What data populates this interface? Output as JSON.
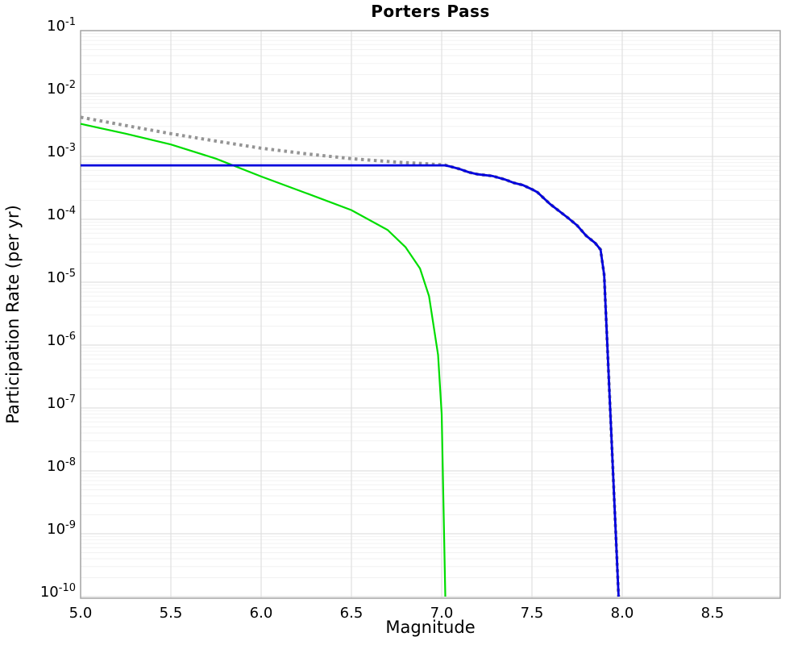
{
  "title": "Porters Pass",
  "chart_data": {
    "type": "line",
    "title": "Porters Pass",
    "xlabel": "Magnitude",
    "ylabel": "Participation Rate (per yr)",
    "x_axis": {
      "min": 5.0,
      "max": 8.875,
      "ticks": [
        5.0,
        5.5,
        6.0,
        6.5,
        7.0,
        7.5,
        8.0,
        8.5
      ]
    },
    "y_axis": {
      "scale": "log",
      "min_exp": -10,
      "max_exp": -1,
      "tick_exponents": [
        -1,
        -2,
        -3,
        -4,
        -5,
        -6,
        -7,
        -8,
        -9,
        -10
      ],
      "tick_base": "10"
    },
    "grid": {
      "major": true,
      "minor_log": true,
      "major_color": "#e0e0e0",
      "minor_color": "#f2f2f2"
    },
    "frame_color": "#a6a6a6",
    "plot_bg": "#ffffff",
    "legend": "none",
    "series": [
      {
        "name": "gray-dotted",
        "color": "#949494",
        "style": "dotted",
        "width": 4,
        "points": [
          [
            5.0,
            0.0042
          ],
          [
            5.25,
            0.0031
          ],
          [
            5.5,
            0.0023
          ],
          [
            5.75,
            0.00175
          ],
          [
            6.0,
            0.00135
          ],
          [
            6.25,
            0.0011
          ],
          [
            6.5,
            0.00092
          ],
          [
            6.75,
            0.00081
          ],
          [
            6.9,
            0.00077
          ],
          [
            7.02,
            0.00073
          ],
          [
            7.05,
            0.00069
          ],
          [
            7.1,
            0.00063
          ],
          [
            7.15,
            0.00056
          ],
          [
            7.2,
            0.00052
          ],
          [
            7.28,
            0.00049
          ],
          [
            7.35,
            0.00043
          ],
          [
            7.4,
            0.00038
          ],
          [
            7.45,
            0.00035
          ],
          [
            7.5,
            0.0003
          ],
          [
            7.53,
            0.00027
          ],
          [
            7.6,
            0.000175
          ],
          [
            7.7,
            0.000105
          ],
          [
            7.75,
            8e-05
          ],
          [
            7.8,
            5.5e-05
          ],
          [
            7.85,
            4.2e-05
          ],
          [
            7.88,
            3.3e-05
          ],
          [
            7.9,
            1.3e-05
          ],
          [
            7.98,
            1e-10
          ]
        ]
      },
      {
        "name": "green-solid",
        "color": "#00dd00",
        "style": "solid",
        "width": 2.2,
        "points": [
          [
            5.0,
            0.0033
          ],
          [
            5.25,
            0.0023
          ],
          [
            5.5,
            0.00155
          ],
          [
            5.75,
            0.00092
          ],
          [
            6.0,
            0.00048
          ],
          [
            6.25,
            0.00026
          ],
          [
            6.5,
            0.00014
          ],
          [
            6.7,
            6.8e-05
          ],
          [
            6.8,
            3.6e-05
          ],
          [
            6.88,
            1.65e-05
          ],
          [
            6.93,
            6e-06
          ],
          [
            6.98,
            7e-07
          ],
          [
            7.0,
            8e-08
          ],
          [
            7.02,
            1e-10
          ]
        ]
      },
      {
        "name": "blue-solid",
        "color": "#0000dd",
        "style": "solid",
        "width": 2.8,
        "points": [
          [
            5.0,
            0.00072
          ],
          [
            7.02,
            0.00072
          ],
          [
            7.05,
            0.00069
          ],
          [
            7.1,
            0.00063
          ],
          [
            7.15,
            0.00056
          ],
          [
            7.2,
            0.00052
          ],
          [
            7.28,
            0.00049
          ],
          [
            7.35,
            0.00043
          ],
          [
            7.4,
            0.00038
          ],
          [
            7.45,
            0.00035
          ],
          [
            7.5,
            0.0003
          ],
          [
            7.53,
            0.00027
          ],
          [
            7.6,
            0.000175
          ],
          [
            7.7,
            0.000105
          ],
          [
            7.75,
            8e-05
          ],
          [
            7.8,
            5.5e-05
          ],
          [
            7.85,
            4.2e-05
          ],
          [
            7.88,
            3.3e-05
          ],
          [
            7.9,
            1.3e-05
          ],
          [
            7.98,
            1e-10
          ]
        ]
      }
    ]
  }
}
